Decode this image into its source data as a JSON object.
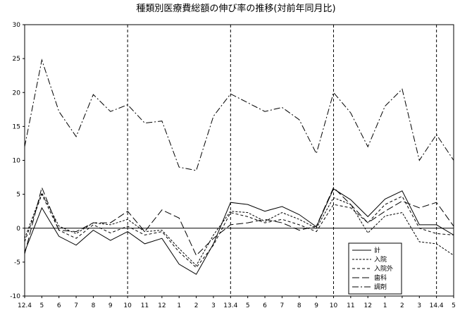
{
  "chart_data": {
    "type": "line",
    "title": "種類別医療費総額の伸び率の推移(対前年同月比)",
    "xlabel": "",
    "ylabel": "",
    "ylim": [
      -10,
      30
    ],
    "yticks": [
      -10,
      -5,
      0,
      5,
      10,
      15,
      20,
      25,
      30
    ],
    "categories": [
      "12.4",
      "5",
      "6",
      "7",
      "8",
      "9",
      "10",
      "11",
      "12",
      "1",
      "2",
      "3",
      "13.4",
      "5",
      "6",
      "7",
      "8",
      "9",
      "10",
      "11",
      "12",
      "1",
      "2",
      "3",
      "14.4",
      "5"
    ],
    "x_tick_labels": [
      "12.4",
      "5",
      "6",
      "7",
      "8",
      "9",
      "10",
      "11",
      "12",
      "1",
      "2",
      "3",
      "13.4",
      "5",
      "6",
      "7",
      "8",
      "9",
      "10",
      "11",
      "12",
      "1",
      "2",
      "3",
      "14.4",
      "5"
    ],
    "vertical_markers": [
      "10",
      "13.4",
      "10",
      "14.4"
    ],
    "zero_line": true,
    "grid": false,
    "legend_position": "bottom-right",
    "series": [
      {
        "name": "計",
        "dash": "solid",
        "values": [
          -3.5,
          3.0,
          -1.2,
          -2.5,
          -0.3,
          -1.8,
          -0.5,
          -2.3,
          -1.5,
          -5.3,
          -6.8,
          -2.3,
          3.8,
          3.5,
          2.5,
          3.2,
          2.0,
          0.2,
          5.8,
          4.2,
          1.7,
          4.3,
          5.5,
          0.5,
          0.5,
          -1.0
        ]
      },
      {
        "name": "入院",
        "dash": "dash-small",
        "values": [
          -1.5,
          5.2,
          0.3,
          -0.8,
          0.8,
          0.5,
          1.3,
          -0.5,
          -0.3,
          -3.0,
          -5.5,
          -1.0,
          2.5,
          2.3,
          1.0,
          2.3,
          1.3,
          0.0,
          4.5,
          3.5,
          -0.7,
          1.8,
          2.3,
          -2.0,
          -2.3,
          -4.0
        ]
      },
      {
        "name": "入院外",
        "dash": "dash-medium",
        "values": [
          -2.0,
          5.0,
          -0.3,
          -1.5,
          0.5,
          -0.7,
          0.3,
          -1.0,
          -0.5,
          -3.5,
          -5.8,
          -2.5,
          2.3,
          1.7,
          0.8,
          1.3,
          0.5,
          -0.5,
          3.5,
          3.0,
          0.8,
          3.5,
          4.7,
          0.0,
          -0.8,
          -1.0
        ]
      },
      {
        "name": "歯科",
        "dash": "dash-long",
        "values": [
          -3.8,
          6.0,
          -0.3,
          -0.5,
          0.8,
          0.8,
          2.5,
          -0.5,
          2.7,
          1.5,
          -4.0,
          -1.5,
          0.5,
          0.8,
          1.3,
          0.8,
          -0.3,
          0.3,
          6.0,
          3.5,
          0.8,
          2.5,
          4.0,
          3.0,
          3.8,
          0.3
        ]
      },
      {
        "name": "調剤",
        "dash": "dash-dot",
        "values": [
          12.0,
          24.8,
          17.2,
          13.5,
          19.7,
          17.2,
          18.2,
          15.5,
          15.8,
          9.0,
          8.5,
          16.5,
          19.8,
          18.5,
          17.2,
          17.8,
          16.0,
          11.0,
          20.0,
          17.0,
          12.0,
          18.0,
          20.5,
          10.0,
          13.8,
          10.0
        ]
      }
    ]
  }
}
